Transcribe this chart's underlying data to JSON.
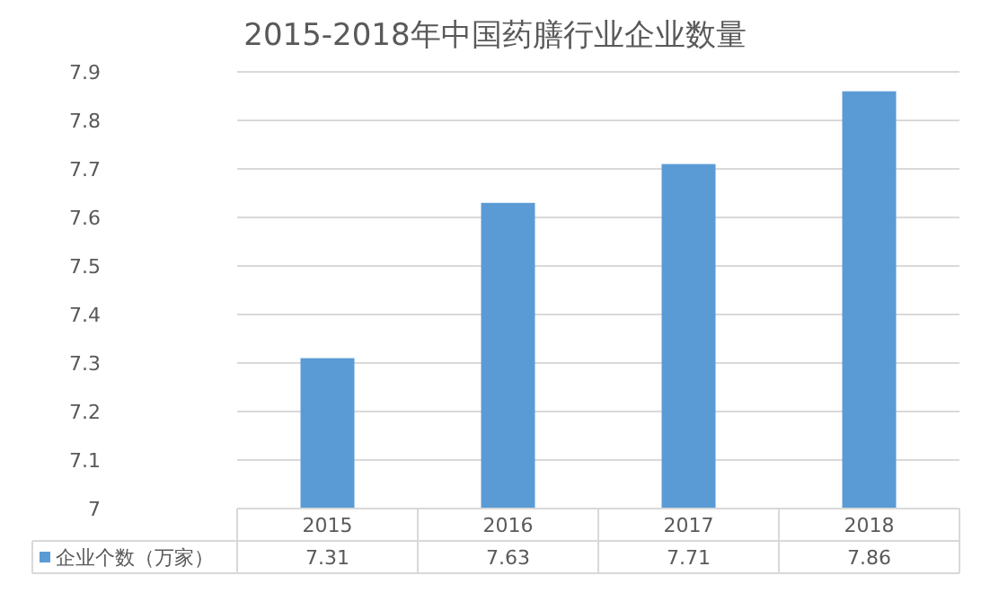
{
  "chart_data": {
    "type": "bar",
    "title": "2015-2018年中国药膳行业企业数量",
    "categories": [
      "2015",
      "2016",
      "2017",
      "2018"
    ],
    "series": [
      {
        "name": "企业个数（万家）",
        "color": "#5b9bd5",
        "values": [
          7.31,
          7.63,
          7.71,
          7.86
        ]
      }
    ],
    "ylim": [
      7,
      7.9
    ],
    "yticks": [
      7,
      7.1,
      7.2,
      7.3,
      7.4,
      7.5,
      7.6,
      7.7,
      7.8,
      7.9
    ],
    "grid": "y",
    "data_labels": true,
    "legend": "bottom"
  }
}
